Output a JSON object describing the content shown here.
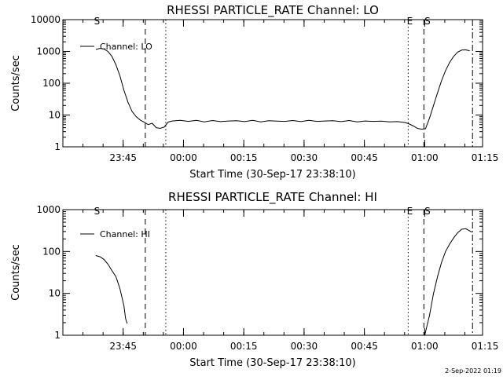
{
  "chart_data": [
    {
      "type": "line",
      "title": "RHESSI PARTICLE_RATE Channel: LO",
      "xlabel": "Start Time (30-Sep-17 23:38:10)",
      "ylabel": "Counts/sec",
      "yscale": "log",
      "ylim": [
        1,
        10000
      ],
      "xlim_minutes": [
        -8.2,
        96.2
      ],
      "xticks": [
        {
          "label": "23:45",
          "min": 6.8
        },
        {
          "label": "00:00",
          "min": 21.8
        },
        {
          "label": "00:15",
          "min": 36.8
        },
        {
          "label": "00:30",
          "min": 51.8
        },
        {
          "label": "00:45",
          "min": 66.8
        },
        {
          "label": "01:00",
          "min": 81.8
        },
        {
          "label": "01:15",
          "min": 96.8
        }
      ],
      "yticks": [
        {
          "label": "1",
          "v": 1
        },
        {
          "label": "10",
          "v": 10
        },
        {
          "label": "100",
          "v": 100
        },
        {
          "label": "1000",
          "v": 1000
        },
        {
          "label": "10000",
          "v": 10000
        }
      ],
      "vlines": [
        {
          "style": "dashed",
          "min": 12.3
        },
        {
          "style": "dotted",
          "min": 17.4
        },
        {
          "style": "dotted",
          "min": 77.7
        },
        {
          "style": "dashed",
          "min": 81.6
        },
        {
          "style": "dashdot",
          "min": 93.7
        }
      ],
      "markers": [
        {
          "label": "S",
          "min": 0.3
        },
        {
          "label": "E",
          "min": 78.1
        },
        {
          "label": "S",
          "min": 82.5
        }
      ],
      "series": [
        {
          "name": "Channel: LO",
          "segments": [
            [
              [
                0.0,
                1150
              ],
              [
                1.0,
                1250
              ],
              [
                2.0,
                1200
              ],
              [
                3.0,
                1000
              ],
              [
                4.0,
                700
              ],
              [
                5.0,
                380
              ],
              [
                6.0,
                170
              ],
              [
                7.0,
                60
              ],
              [
                8.0,
                25
              ],
              [
                9.0,
                13
              ],
              [
                10.0,
                9
              ],
              [
                11.0,
                7
              ],
              [
                12.0,
                6
              ],
              [
                13.0,
                5
              ],
              [
                14.0,
                5.5
              ],
              [
                15.0,
                4
              ],
              [
                16.0,
                3.8
              ],
              [
                17.0,
                4.2
              ],
              [
                18.0,
                6
              ],
              [
                19.0,
                6.5
              ],
              [
                21.0,
                6.8
              ],
              [
                23.0,
                6.3
              ],
              [
                25.0,
                6.8
              ],
              [
                27.0,
                6.1
              ],
              [
                29.0,
                6.7
              ],
              [
                31.0,
                6.2
              ],
              [
                33.0,
                6.5
              ],
              [
                35.0,
                6.6
              ],
              [
                37.0,
                6.2
              ],
              [
                39.0,
                6.8
              ],
              [
                41.0,
                6.1
              ],
              [
                43.0,
                6.6
              ],
              [
                45.0,
                6.4
              ],
              [
                47.0,
                6.3
              ],
              [
                49.0,
                6.7
              ],
              [
                51.0,
                6.2
              ],
              [
                53.0,
                6.8
              ],
              [
                55.0,
                6.3
              ],
              [
                57.0,
                6.5
              ],
              [
                59.0,
                6.6
              ],
              [
                61.0,
                6.2
              ],
              [
                63.0,
                6.7
              ],
              [
                65.0,
                6.1
              ],
              [
                67.0,
                6.5
              ],
              [
                69.0,
                6.3
              ],
              [
                71.0,
                6.4
              ],
              [
                73.0,
                6.1
              ],
              [
                75.0,
                6.2
              ],
              [
                77.0,
                5.8
              ],
              [
                78.0,
                5.2
              ],
              [
                79.0,
                4.5
              ],
              [
                80.0,
                3.8
              ],
              [
                81.0,
                3.6
              ],
              [
                82.0,
                3.7
              ],
              [
                83.0,
                8
              ],
              [
                84.0,
                20
              ],
              [
                85.0,
                50
              ],
              [
                86.0,
                120
              ],
              [
                87.0,
                250
              ],
              [
                88.0,
                450
              ],
              [
                89.0,
                700
              ],
              [
                90.0,
                950
              ],
              [
                91.0,
                1100
              ],
              [
                92.0,
                1120
              ],
              [
                93.0,
                1050
              ]
            ]
          ]
        }
      ]
    },
    {
      "type": "line",
      "title": "RHESSI PARTICLE_RATE Channel: HI",
      "xlabel": "Start Time (30-Sep-17 23:38:10)",
      "ylabel": "Counts/sec",
      "yscale": "log",
      "ylim": [
        1,
        1000
      ],
      "xlim_minutes": [
        -8.2,
        96.2
      ],
      "xticks": [
        {
          "label": "23:45",
          "min": 6.8
        },
        {
          "label": "00:00",
          "min": 21.8
        },
        {
          "label": "00:15",
          "min": 36.8
        },
        {
          "label": "00:30",
          "min": 51.8
        },
        {
          "label": "00:45",
          "min": 66.8
        },
        {
          "label": "01:00",
          "min": 81.8
        },
        {
          "label": "01:15",
          "min": 96.8
        }
      ],
      "yticks": [
        {
          "label": "1",
          "v": 1
        },
        {
          "label": "10",
          "v": 10
        },
        {
          "label": "100",
          "v": 100
        },
        {
          "label": "1000",
          "v": 1000
        }
      ],
      "vlines": [
        {
          "style": "dashed",
          "min": 12.3
        },
        {
          "style": "dotted",
          "min": 17.4
        },
        {
          "style": "dotted",
          "min": 77.7
        },
        {
          "style": "dashed",
          "min": 81.6
        },
        {
          "style": "dashdot",
          "min": 93.7
        }
      ],
      "markers": [
        {
          "label": "S",
          "min": 0.3
        },
        {
          "label": "E",
          "min": 78.1
        },
        {
          "label": "S",
          "min": 82.5
        }
      ],
      "series": [
        {
          "name": "Channel: HI",
          "segments": [
            [
              [
                0.0,
                80
              ],
              [
                1.0,
                75
              ],
              [
                2.0,
                65
              ],
              [
                3.0,
                50
              ],
              [
                4.0,
                35
              ],
              [
                5.0,
                25
              ],
              [
                6.0,
                13
              ],
              [
                7.0,
                5
              ],
              [
                7.4,
                2.5
              ],
              [
                7.8,
                1.9
              ]
            ],
            [
              [
                81.5,
                0.7
              ],
              [
                82.0,
                1.2
              ],
              [
                83.0,
                3
              ],
              [
                84.0,
                10
              ],
              [
                85.0,
                25
              ],
              [
                86.0,
                55
              ],
              [
                87.0,
                100
              ],
              [
                88.0,
                150
              ],
              [
                89.0,
                210
              ],
              [
                90.0,
                280
              ],
              [
                91.0,
                340
              ],
              [
                92.0,
                350
              ],
              [
                93.0,
                310
              ],
              [
                93.5,
                290
              ]
            ]
          ]
        }
      ]
    }
  ],
  "footer": {
    "stamp": "2-Sep-2022 01:19"
  }
}
